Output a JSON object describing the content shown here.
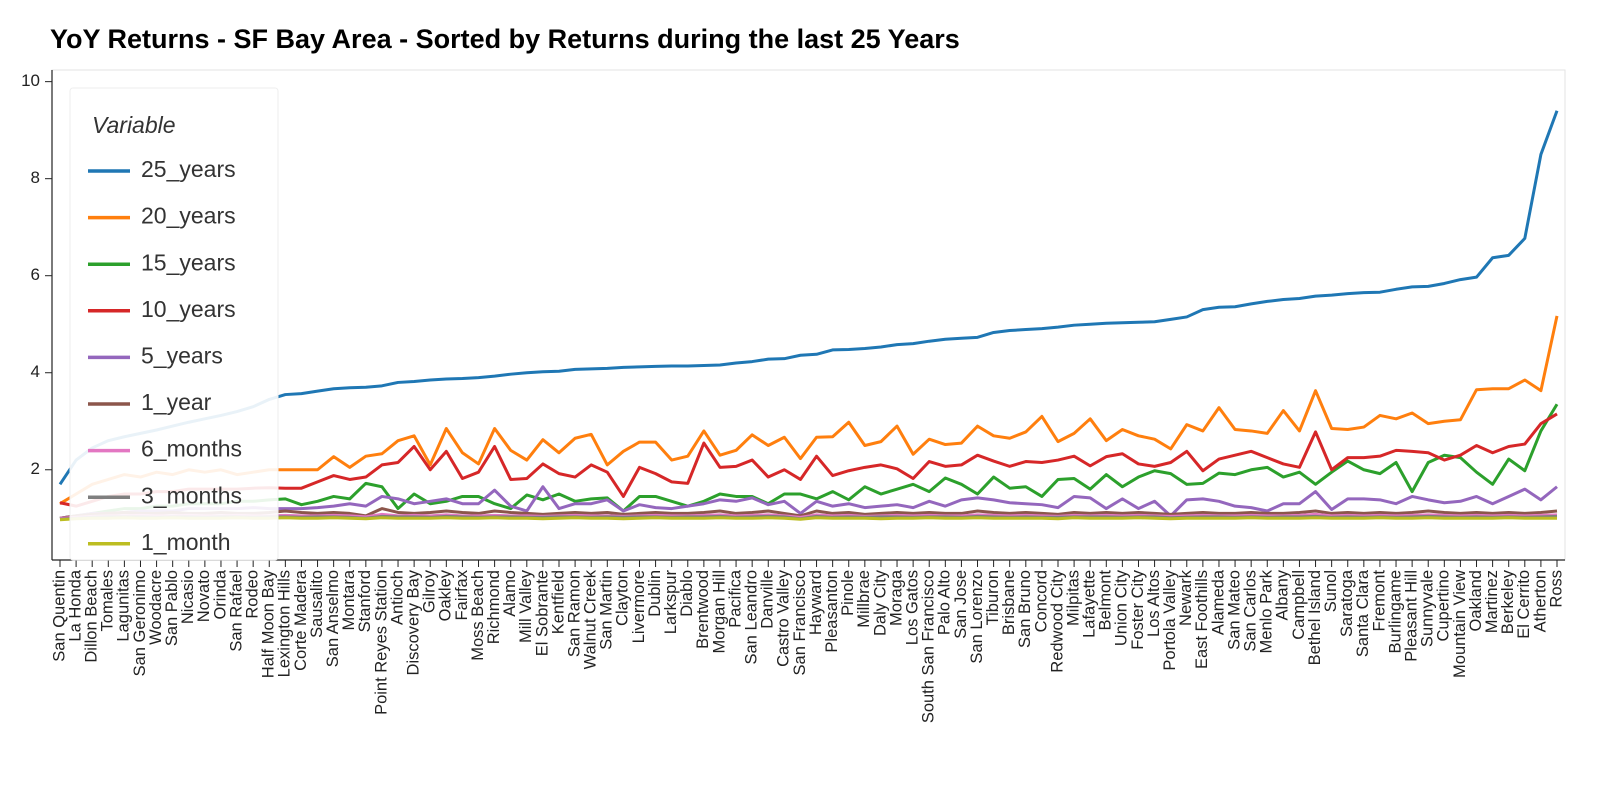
{
  "chart_data": {
    "type": "line",
    "title": "YoY Returns - SF Bay Area - Sorted by Returns during the last 25 Years",
    "legend_title": "Variable",
    "legend": "upper left",
    "grid": false,
    "ylim": [
      0.14,
      10.24
    ],
    "yticks": [
      2,
      4,
      6,
      8,
      10
    ],
    "categories": [
      "San Quentin",
      "La Honda",
      "Dillon Beach",
      "Tomales",
      "Lagunitas",
      "San Geronimo",
      "Woodacre",
      "San Pablo",
      "Nicasio",
      "Novato",
      "Orinda",
      "San Rafael",
      "Rodeo",
      "Half Moon Bay",
      "Lexington Hills",
      "Corte Madera",
      "Sausalito",
      "San Anselmo",
      "Montara",
      "Stanford",
      "Point Reyes Station",
      "Antioch",
      "Discovery Bay",
      "Gilroy",
      "Oakley",
      "Fairfax",
      "Moss Beach",
      "Richmond",
      "Alamo",
      "Mill Valley",
      "El Sobrante",
      "Kentfield",
      "San Ramon",
      "Walnut Creek",
      "San Martin",
      "Clayton",
      "Livermore",
      "Dublin",
      "Larkspur",
      "Diablo",
      "Brentwood",
      "Morgan Hill",
      "Pacifica",
      "San Leandro",
      "Danville",
      "Castro Valley",
      "San Francisco",
      "Hayward",
      "Pleasanton",
      "Pinole",
      "Millbrae",
      "Daly City",
      "Moraga",
      "Los Gatos",
      "South San Francisco",
      "Palo Alto",
      "San Jose",
      "San Lorenzo",
      "Tiburon",
      "Brisbane",
      "San Bruno",
      "Concord",
      "Redwood City",
      "Milpitas",
      "Lafayette",
      "Belmont",
      "Union City",
      "Foster City",
      "Los Altos",
      "Portola Valley",
      "Newark",
      "East Foothills",
      "Alameda",
      "San Mateo",
      "San Carlos",
      "Menlo Park",
      "Albany",
      "Campbell",
      "Bethel Island",
      "Sunol",
      "Saratoga",
      "Santa Clara",
      "Fremont",
      "Burlingame",
      "Pleasant Hill",
      "Sunnyvale",
      "Cupertino",
      "Mountain View",
      "Oakland",
      "Martinez",
      "Berkeley",
      "El Cerrito",
      "Atherton",
      "Ross"
    ],
    "series": [
      {
        "name": "25_years",
        "color": "#1f77b4",
        "values": [
          1.7,
          2.2,
          2.45,
          2.6,
          2.68,
          2.75,
          2.82,
          2.9,
          2.98,
          3.05,
          3.12,
          3.2,
          3.3,
          3.45,
          3.55,
          3.57,
          3.62,
          3.67,
          3.69,
          3.7,
          3.73,
          3.8,
          3.82,
          3.85,
          3.87,
          3.88,
          3.9,
          3.93,
          3.97,
          4.0,
          4.02,
          4.03,
          4.07,
          4.08,
          4.09,
          4.11,
          4.12,
          4.13,
          4.14,
          4.14,
          4.15,
          4.16,
          4.2,
          4.23,
          4.28,
          4.29,
          4.36,
          4.38,
          4.47,
          4.48,
          4.5,
          4.53,
          4.58,
          4.6,
          4.65,
          4.69,
          4.71,
          4.73,
          4.83,
          4.87,
          4.89,
          4.91,
          4.94,
          4.98,
          5.0,
          5.02,
          5.03,
          5.04,
          5.05,
          5.1,
          5.15,
          5.3,
          5.35,
          5.36,
          5.42,
          5.47,
          5.51,
          5.53,
          5.58,
          5.6,
          5.63,
          5.65,
          5.66,
          5.72,
          5.77,
          5.78,
          5.84,
          5.92,
          5.97,
          6.37,
          6.42,
          6.77,
          8.5,
          9.4
        ]
      },
      {
        "name": "20_years",
        "color": "#ff7f0e",
        "values": [
          1.3,
          1.5,
          1.7,
          1.8,
          1.9,
          1.85,
          1.95,
          1.9,
          2.0,
          1.95,
          2.0,
          1.9,
          1.95,
          2.0,
          2.0,
          2.0,
          2.0,
          2.27,
          2.05,
          2.28,
          2.33,
          2.6,
          2.7,
          2.1,
          2.85,
          2.35,
          2.12,
          2.85,
          2.4,
          2.2,
          2.62,
          2.35,
          2.65,
          2.73,
          2.1,
          2.38,
          2.57,
          2.57,
          2.2,
          2.28,
          2.8,
          2.3,
          2.4,
          2.72,
          2.5,
          2.67,
          2.23,
          2.67,
          2.68,
          2.98,
          2.5,
          2.58,
          2.9,
          2.32,
          2.63,
          2.52,
          2.55,
          2.9,
          2.7,
          2.65,
          2.78,
          3.1,
          2.58,
          2.75,
          3.05,
          2.6,
          2.83,
          2.7,
          2.63,
          2.43,
          2.93,
          2.8,
          3.28,
          2.83,
          2.8,
          2.75,
          3.22,
          2.8,
          3.63,
          2.85,
          2.83,
          2.88,
          3.12,
          3.05,
          3.17,
          2.95,
          3.0,
          3.03,
          3.65,
          3.67,
          3.67,
          3.85,
          3.63,
          5.17
        ]
      },
      {
        "name": "15_years",
        "color": "#2ca02c",
        "values": [
          1.0,
          1.05,
          1.1,
          1.15,
          1.2,
          1.2,
          1.25,
          1.25,
          1.3,
          1.3,
          1.3,
          1.35,
          1.35,
          1.38,
          1.4,
          1.28,
          1.35,
          1.45,
          1.4,
          1.72,
          1.65,
          1.2,
          1.5,
          1.3,
          1.35,
          1.45,
          1.45,
          1.3,
          1.2,
          1.48,
          1.38,
          1.5,
          1.35,
          1.4,
          1.42,
          1.15,
          1.45,
          1.45,
          1.35,
          1.25,
          1.35,
          1.5,
          1.45,
          1.45,
          1.3,
          1.5,
          1.5,
          1.4,
          1.55,
          1.38,
          1.65,
          1.5,
          1.6,
          1.7,
          1.55,
          1.83,
          1.7,
          1.5,
          1.85,
          1.62,
          1.65,
          1.45,
          1.8,
          1.82,
          1.6,
          1.9,
          1.65,
          1.85,
          1.98,
          1.92,
          1.7,
          1.72,
          1.93,
          1.9,
          2.0,
          2.05,
          1.85,
          1.95,
          1.7,
          1.95,
          2.18,
          2.0,
          1.92,
          2.15,
          1.55,
          2.15,
          2.3,
          2.25,
          1.95,
          1.7,
          2.22,
          1.98,
          2.8,
          3.35
        ]
      },
      {
        "name": "10_years",
        "color": "#d62728",
        "values": [
          1.32,
          1.25,
          1.35,
          1.45,
          1.5,
          1.5,
          1.55,
          1.55,
          1.6,
          1.6,
          1.6,
          1.6,
          1.62,
          1.63,
          1.62,
          1.62,
          1.75,
          1.88,
          1.8,
          1.85,
          2.1,
          2.15,
          2.48,
          2.0,
          2.38,
          1.82,
          1.95,
          2.48,
          1.8,
          1.82,
          2.12,
          1.92,
          1.85,
          2.1,
          1.95,
          1.45,
          2.05,
          1.92,
          1.75,
          1.72,
          2.55,
          2.05,
          2.07,
          2.2,
          1.85,
          2.0,
          1.8,
          2.28,
          1.88,
          1.98,
          2.05,
          2.1,
          2.02,
          1.82,
          2.17,
          2.07,
          2.1,
          2.3,
          2.18,
          2.07,
          2.17,
          2.15,
          2.2,
          2.28,
          2.08,
          2.27,
          2.33,
          2.12,
          2.07,
          2.15,
          2.38,
          1.98,
          2.22,
          2.3,
          2.38,
          2.25,
          2.12,
          2.05,
          2.78,
          2.0,
          2.25,
          2.25,
          2.28,
          2.4,
          2.38,
          2.35,
          2.2,
          2.3,
          2.5,
          2.35,
          2.48,
          2.53,
          2.95,
          3.15
        ]
      },
      {
        "name": "5_years",
        "color": "#9467bd",
        "values": [
          1.0,
          1.05,
          1.1,
          1.1,
          1.12,
          1.15,
          1.15,
          1.15,
          1.2,
          1.2,
          1.2,
          1.2,
          1.22,
          1.2,
          1.2,
          1.2,
          1.22,
          1.25,
          1.3,
          1.25,
          1.45,
          1.4,
          1.3,
          1.35,
          1.4,
          1.3,
          1.3,
          1.58,
          1.25,
          1.15,
          1.65,
          1.2,
          1.3,
          1.3,
          1.38,
          1.15,
          1.28,
          1.22,
          1.2,
          1.25,
          1.3,
          1.38,
          1.35,
          1.42,
          1.28,
          1.35,
          1.1,
          1.35,
          1.25,
          1.3,
          1.22,
          1.25,
          1.28,
          1.22,
          1.35,
          1.25,
          1.38,
          1.42,
          1.38,
          1.32,
          1.3,
          1.28,
          1.22,
          1.45,
          1.42,
          1.2,
          1.4,
          1.2,
          1.35,
          1.05,
          1.38,
          1.4,
          1.35,
          1.25,
          1.22,
          1.15,
          1.3,
          1.3,
          1.55,
          1.18,
          1.4,
          1.4,
          1.38,
          1.3,
          1.45,
          1.38,
          1.32,
          1.35,
          1.45,
          1.3,
          1.45,
          1.6,
          1.38,
          1.65
        ]
      },
      {
        "name": "1_year",
        "color": "#8c564b",
        "values": [
          1.0,
          1.05,
          1.08,
          1.1,
          1.12,
          1.1,
          1.1,
          1.12,
          1.1,
          1.1,
          1.12,
          1.1,
          1.1,
          1.12,
          1.15,
          1.12,
          1.1,
          1.12,
          1.1,
          1.05,
          1.2,
          1.12,
          1.1,
          1.12,
          1.15,
          1.12,
          1.1,
          1.15,
          1.12,
          1.1,
          1.08,
          1.1,
          1.12,
          1.1,
          1.12,
          1.08,
          1.1,
          1.12,
          1.1,
          1.1,
          1.12,
          1.15,
          1.1,
          1.12,
          1.15,
          1.1,
          1.05,
          1.15,
          1.1,
          1.12,
          1.08,
          1.1,
          1.12,
          1.1,
          1.12,
          1.1,
          1.1,
          1.15,
          1.12,
          1.1,
          1.12,
          1.1,
          1.08,
          1.12,
          1.1,
          1.12,
          1.1,
          1.12,
          1.1,
          1.08,
          1.1,
          1.12,
          1.1,
          1.1,
          1.12,
          1.1,
          1.1,
          1.12,
          1.15,
          1.1,
          1.12,
          1.1,
          1.12,
          1.1,
          1.12,
          1.15,
          1.12,
          1.1,
          1.12,
          1.1,
          1.12,
          1.1,
          1.12,
          1.15
        ]
      },
      {
        "name": "6_months",
        "color": "#e377c2",
        "values": [
          1.0,
          1.02,
          1.04,
          1.05,
          1.05,
          1.06,
          1.05,
          1.05,
          1.06,
          1.05,
          1.05,
          1.06,
          1.05,
          1.05,
          1.06,
          1.05,
          1.05,
          1.06,
          1.05,
          1.03,
          1.08,
          1.05,
          1.06,
          1.05,
          1.07,
          1.05,
          1.05,
          1.06,
          1.05,
          1.05,
          1.04,
          1.05,
          1.06,
          1.05,
          1.05,
          1.04,
          1.05,
          1.06,
          1.05,
          1.05,
          1.06,
          1.07,
          1.05,
          1.06,
          1.07,
          1.05,
          1.02,
          1.07,
          1.05,
          1.06,
          1.04,
          1.05,
          1.06,
          1.05,
          1.06,
          1.05,
          1.05,
          1.07,
          1.06,
          1.05,
          1.06,
          1.05,
          1.04,
          1.06,
          1.05,
          1.06,
          1.05,
          1.06,
          1.05,
          1.04,
          1.05,
          1.06,
          1.05,
          1.05,
          1.06,
          1.05,
          1.05,
          1.06,
          1.08,
          1.05,
          1.06,
          1.05,
          1.06,
          1.05,
          1.06,
          1.07,
          1.06,
          1.05,
          1.06,
          1.05,
          1.06,
          1.05,
          1.06,
          1.07
        ]
      },
      {
        "name": "3_months",
        "color": "#7f7f7f",
        "values": [
          0.98,
          1.0,
          1.02,
          1.03,
          1.03,
          1.03,
          1.02,
          1.03,
          1.03,
          1.02,
          1.03,
          1.03,
          1.02,
          1.03,
          1.03,
          1.02,
          1.03,
          1.03,
          1.02,
          1.0,
          1.04,
          1.03,
          1.03,
          1.02,
          1.04,
          1.03,
          1.02,
          1.03,
          1.03,
          1.02,
          1.02,
          1.03,
          1.03,
          1.02,
          1.03,
          1.02,
          1.03,
          1.03,
          1.02,
          1.03,
          1.03,
          1.04,
          1.02,
          1.03,
          1.04,
          1.03,
          0.99,
          1.04,
          1.02,
          1.03,
          1.02,
          1.03,
          1.03,
          1.02,
          1.03,
          1.03,
          1.02,
          1.04,
          1.03,
          1.02,
          1.03,
          1.02,
          1.02,
          1.03,
          1.03,
          1.03,
          1.02,
          1.03,
          1.03,
          1.01,
          1.02,
          1.03,
          1.03,
          1.02,
          1.03,
          1.02,
          1.03,
          1.03,
          1.04,
          1.02,
          1.03,
          1.02,
          1.03,
          1.02,
          1.03,
          1.04,
          1.03,
          1.02,
          1.03,
          1.02,
          1.03,
          1.02,
          1.03,
          1.04
        ]
      },
      {
        "name": "1_month",
        "color": "#bcbd22",
        "values": [
          0.97,
          0.99,
          1.0,
          1.0,
          1.01,
          1.0,
          1.0,
          1.01,
          1.0,
          1.0,
          1.0,
          1.01,
          1.0,
          1.0,
          1.01,
          1.0,
          1.0,
          1.01,
          1.0,
          0.99,
          1.01,
          1.0,
          1.0,
          1.0,
          1.01,
          1.0,
          1.0,
          1.01,
          1.0,
          1.0,
          0.99,
          1.0,
          1.01,
          1.0,
          1.0,
          0.99,
          1.0,
          1.01,
          1.0,
          1.0,
          1.0,
          1.01,
          1.0,
          1.0,
          1.01,
          1.0,
          0.98,
          1.01,
          1.0,
          1.0,
          1.0,
          0.99,
          1.0,
          1.0,
          1.01,
          1.0,
          1.0,
          1.01,
          1.0,
          1.0,
          1.0,
          1.0,
          0.99,
          1.01,
          1.0,
          1.0,
          1.0,
          1.01,
          1.0,
          0.99,
          1.0,
          1.0,
          1.0,
          1.0,
          1.01,
          1.0,
          1.0,
          1.0,
          1.01,
          1.0,
          1.0,
          1.0,
          1.01,
          1.0,
          1.0,
          1.01,
          1.0,
          1.0,
          1.0,
          1.0,
          1.01,
          1.0,
          1.0,
          1.0
        ]
      }
    ]
  }
}
